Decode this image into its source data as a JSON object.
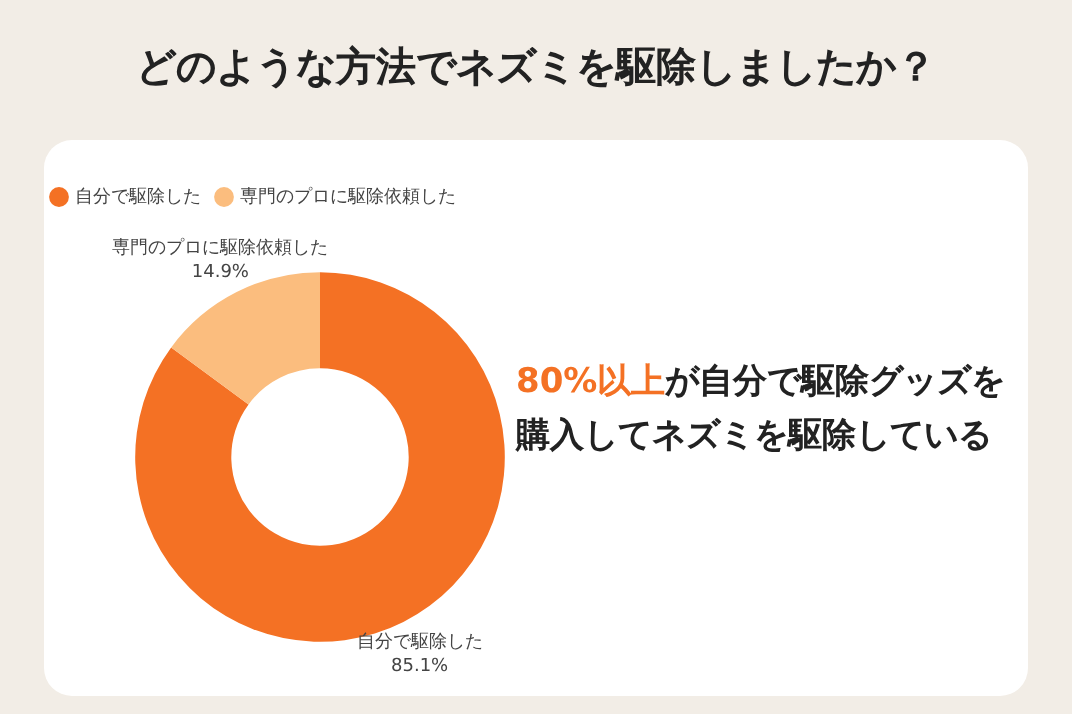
{
  "chart_data": {
    "type": "donut",
    "title": "どのような方法でネズミを駆除しましたか？",
    "categories": [
      "自分で駆除した",
      "専門のプロに駆除依頼した"
    ],
    "values": [
      85.1,
      14.9
    ],
    "value_labels": [
      "85.1%",
      "14.9%"
    ],
    "colors": [
      "#f47124",
      "#fbbd7e"
    ],
    "legend": "top left",
    "annotations": [
      "80%以上",
      "が自分で駆除グッズを購入してネズミを駆除している"
    ]
  }
}
